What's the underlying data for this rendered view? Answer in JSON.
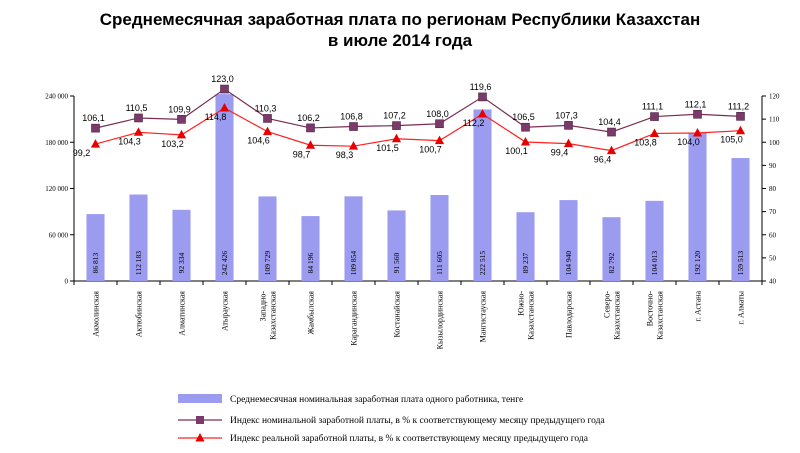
{
  "chart_data": {
    "type": "bar+line",
    "title": [
      "Среднемесячная заработная плата по регионам Республики Казахстан",
      "в июле 2014 года"
    ],
    "categories": [
      [
        "Акмолинская"
      ],
      [
        "Актюбинская"
      ],
      [
        "Алматинская"
      ],
      [
        "Атырауская"
      ],
      [
        "Западно-",
        "Казахстанская"
      ],
      [
        "Жамбылская"
      ],
      [
        "Карагандинская"
      ],
      [
        "Костанайская"
      ],
      [
        "Кызылординская"
      ],
      [
        "Мангистауская"
      ],
      [
        "Южно-",
        "Казахстанская"
      ],
      [
        "Павлодарская"
      ],
      [
        "Северо-",
        "Казахстанская"
      ],
      [
        "Восточно-",
        "Казахстанская"
      ],
      [
        "г. Астана"
      ],
      [
        "г. Алматы"
      ]
    ],
    "bar_series": {
      "name": "Среднемесячная номинальная заработная плата одного работника, тенге",
      "color": "#9b9bf0",
      "values": [
        86813,
        112183,
        92334,
        242426,
        109729,
        84196,
        109854,
        91560,
        111605,
        222515,
        89237,
        104940,
        82792,
        104013,
        192120,
        159513
      ],
      "labels": [
        "86 813",
        "112 183",
        "92 334",
        "242 426",
        "109 729",
        "84 196",
        "109 854",
        "91 560",
        "111 605",
        "222 515",
        "89 237",
        "104 940",
        "82 792",
        "104 013",
        "192 120",
        "159 513"
      ]
    },
    "line_series": [
      {
        "name": "Индекс номинальной заработной платы, в % к соответствующему месяцу предыдущего года",
        "color": "#7b2d52",
        "marker_color": "#7b3a6b",
        "marker": "square",
        "values": [
          106.1,
          110.5,
          109.9,
          123.0,
          110.3,
          106.2,
          106.8,
          107.2,
          108.0,
          119.6,
          106.5,
          107.3,
          104.4,
          111.1,
          112.1,
          111.2
        ],
        "labels": [
          "106,1",
          "110,5",
          "109,9",
          "123,0",
          "110,3",
          "106,2",
          "106,8",
          "107,2",
          "108,0",
          "119,6",
          "106,5",
          "107,3",
          "104,4",
          "111,1",
          "112,1",
          "111,2"
        ]
      },
      {
        "name": "Индекс реальной заработной платы, в % к соответствующему месяцу предыдущего года",
        "color": "#ff2020",
        "marker_color": "#e60000",
        "marker": "triangle",
        "values": [
          99.2,
          104.3,
          103.2,
          114.8,
          104.6,
          98.7,
          98.3,
          101.5,
          100.7,
          112.2,
          100.1,
          99.4,
          96.4,
          103.8,
          104.0,
          105.0
        ],
        "labels": [
          "99,2",
          "104,3",
          "103,2",
          "114,8",
          "104,6",
          "98,7",
          "98,3",
          "101,5",
          "100,7",
          "112,2",
          "100,1",
          "99,4",
          "96,4",
          "103,8",
          "104,0",
          "105,0"
        ]
      }
    ],
    "y_left": {
      "ylim": [
        0,
        240000
      ],
      "ticks": [
        0,
        60000,
        120000,
        180000,
        240000
      ],
      "tick_labels": [
        "0",
        "60 000",
        "120 000",
        "180 000",
        "240 000"
      ]
    },
    "y_right": {
      "ylim": [
        40,
        120
      ],
      "ticks": [
        40,
        50,
        60,
        70,
        80,
        90,
        100,
        110,
        120
      ],
      "tick_labels": [
        "40",
        "50",
        "60",
        "70",
        "80",
        "90",
        "100",
        "110",
        "120"
      ]
    },
    "legend_position": "bottom-center"
  }
}
